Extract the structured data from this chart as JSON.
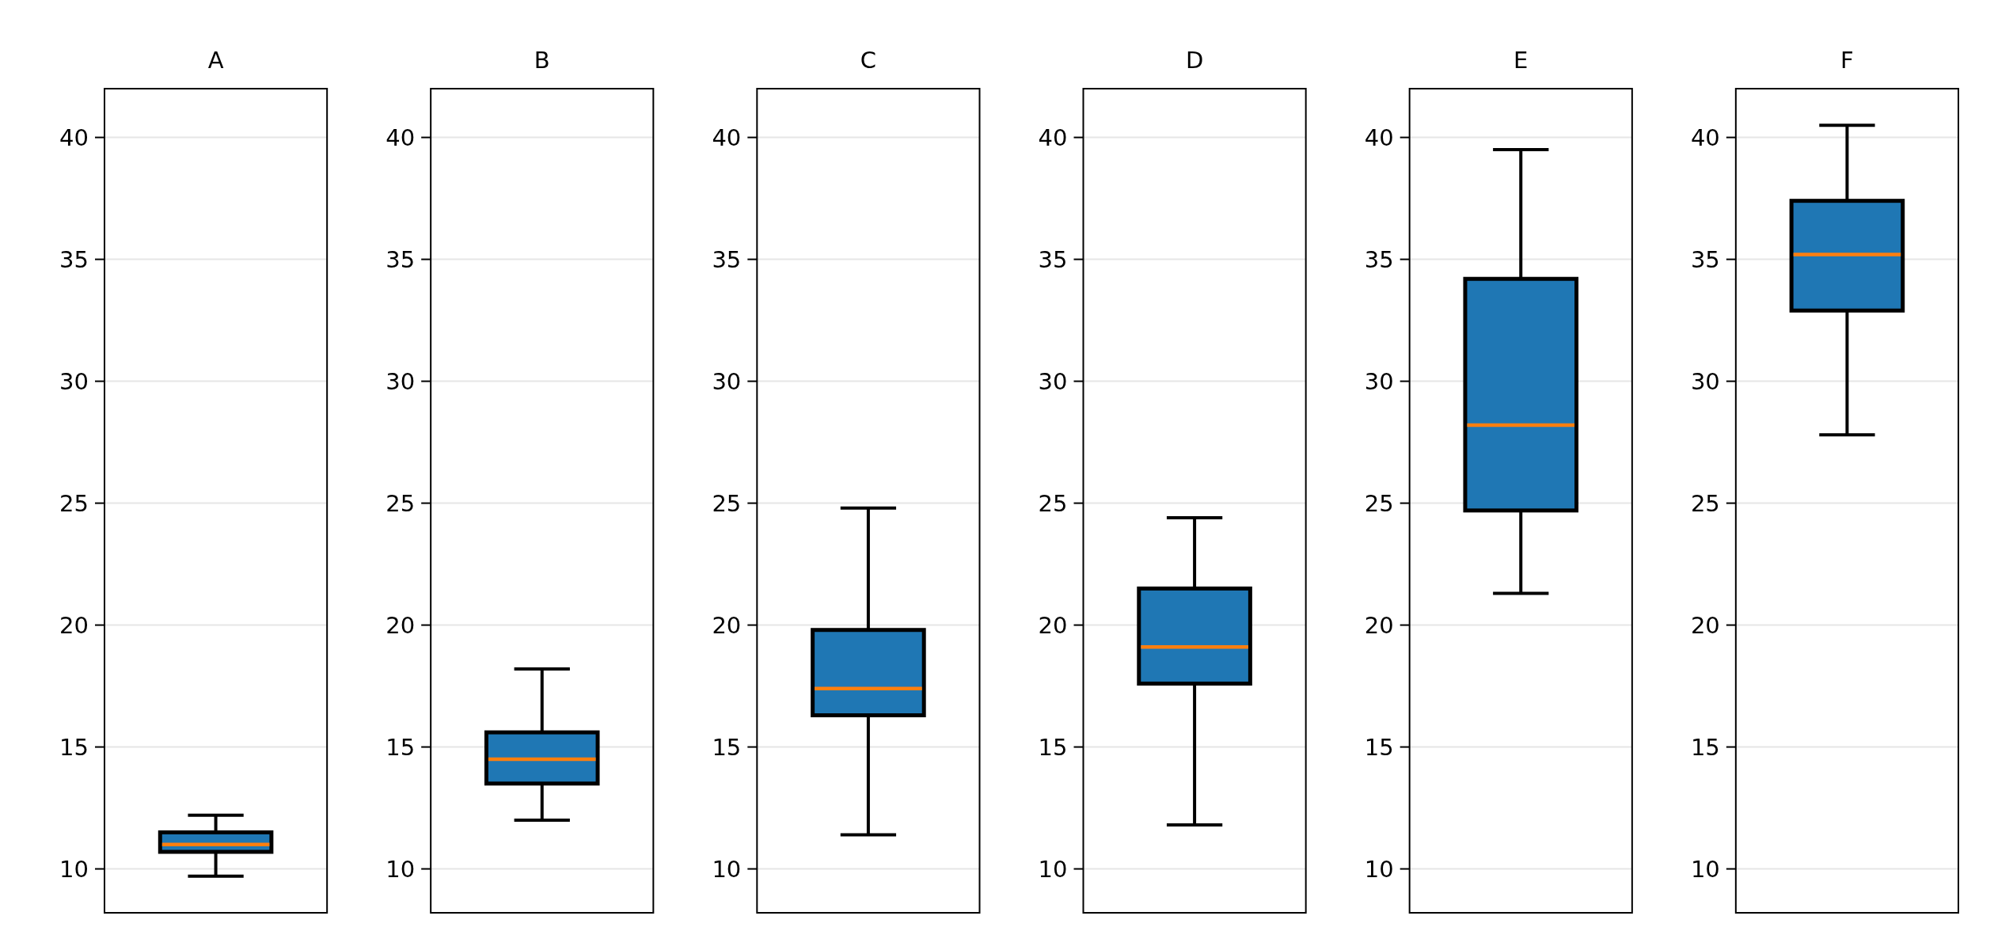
{
  "chart_data": [
    {
      "type": "box",
      "title": "A",
      "categories": [
        null
      ],
      "series": [
        {
          "color": "#1f77b4",
          "boxes": [
            {
              "low": 9.7,
              "q1": 10.7,
              "median": 11,
              "q3": 11.5,
              "high": 12.2
            }
          ]
        }
      ],
      "ylim": [
        8.2,
        42
      ],
      "yticks": [
        10,
        15,
        20,
        25,
        30,
        35,
        40
      ],
      "grid": "y",
      "tick_labels": "y"
    },
    {
      "type": "box",
      "title": "B",
      "categories": [
        null
      ],
      "series": [
        {
          "color": "#1f77b4",
          "boxes": [
            {
              "low": 12,
              "q1": 13.5,
              "median": 14.5,
              "q3": 15.6,
              "high": 18.2
            }
          ]
        }
      ],
      "ylim": [
        8.2,
        42
      ],
      "yticks": [
        10,
        15,
        20,
        25,
        30,
        35,
        40
      ],
      "grid": "y",
      "tick_labels": "y"
    },
    {
      "type": "box",
      "title": "C",
      "categories": [
        null
      ],
      "series": [
        {
          "color": "#1f77b4",
          "boxes": [
            {
              "low": 11.4,
              "q1": 16.3,
              "median": 17.4,
              "q3": 19.8,
              "high": 24.8
            }
          ]
        }
      ],
      "ylim": [
        8.2,
        42
      ],
      "yticks": [
        10,
        15,
        20,
        25,
        30,
        35,
        40
      ],
      "grid": "y",
      "tick_labels": "y"
    },
    {
      "type": "box",
      "title": "D",
      "categories": [
        null
      ],
      "series": [
        {
          "color": "#1f77b4",
          "boxes": [
            {
              "low": 11.8,
              "q1": 17.6,
              "median": 19.1,
              "q3": 21.5,
              "high": 24.4
            }
          ]
        }
      ],
      "ylim": [
        8.2,
        42
      ],
      "yticks": [
        10,
        15,
        20,
        25,
        30,
        35,
        40
      ],
      "grid": "y",
      "tick_labels": "y"
    },
    {
      "type": "box",
      "title": "E",
      "categories": [
        null
      ],
      "series": [
        {
          "color": "#1f77b4",
          "boxes": [
            {
              "low": 21.3,
              "q1": 24.7,
              "median": 28.2,
              "q3": 34.2,
              "high": 39.5
            }
          ]
        }
      ],
      "ylim": [
        8.2,
        42
      ],
      "yticks": [
        10,
        15,
        20,
        25,
        30,
        35,
        40
      ],
      "grid": "y",
      "tick_labels": "y"
    },
    {
      "type": "box",
      "title": "F",
      "categories": [
        null
      ],
      "series": [
        {
          "color": "#1f77b4",
          "boxes": [
            {
              "low": 27.8,
              "q1": 32.9,
              "median": 35.2,
              "q3": 37.4,
              "high": 40.5
            }
          ]
        }
      ],
      "ylim": [
        8.2,
        42
      ],
      "yticks": [
        10,
        15,
        20,
        25,
        30,
        35,
        40
      ],
      "grid": "y",
      "tick_labels": "y"
    }
  ]
}
